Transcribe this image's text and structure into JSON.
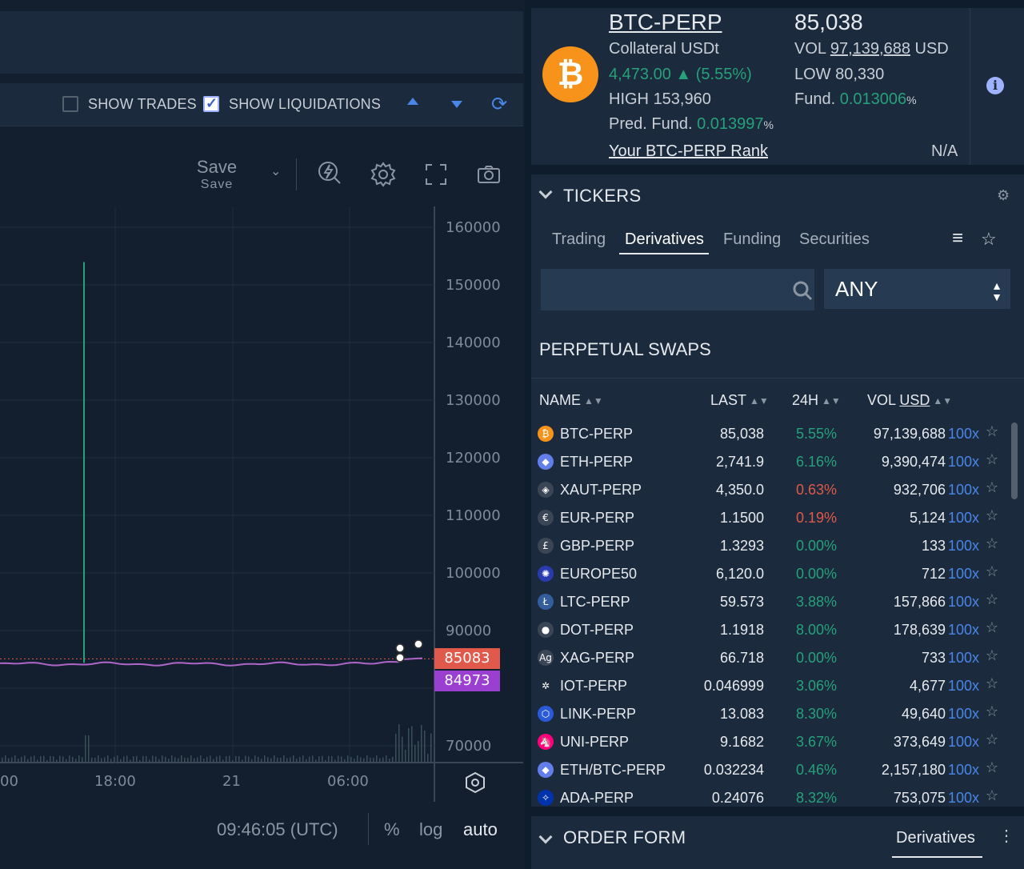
{
  "chart_toolbar": {
    "show_trades": "SHOW TRADES",
    "show_liquidations": "SHOW LIQUIDATIONS",
    "show_trades_checked": false,
    "show_liquidations_checked": true,
    "save_label": "Save",
    "save_sublabel": "Save"
  },
  "chart": {
    "y_ticks": [
      "160000",
      "150000",
      "140000",
      "130000",
      "120000",
      "110000",
      "100000",
      "90000",
      "70000"
    ],
    "x_ticks": [
      "00",
      "18:00",
      "21",
      "06:00"
    ],
    "price_tag_1": "85083",
    "price_tag_2": "84973",
    "tag1_color": "#e0594a",
    "tag2_color": "#9b3fd1"
  },
  "chart_data": {
    "type": "line",
    "x": [
      "00",
      "18:00",
      "21",
      "06:00"
    ],
    "ylim": [
      70000,
      160000
    ],
    "series": [
      {
        "values": [
          84200,
          84600,
          84800,
          84973
        ]
      }
    ]
  },
  "chart_footer": {
    "time": "09:46:05 (UTC)",
    "percent": "%",
    "log": "log",
    "auto": "auto"
  },
  "market": {
    "symbol": "BTC-PERP",
    "price": "85,038",
    "collateral": "Collateral USDt",
    "change": "4,473.00 ▲ (5.55%)",
    "high_label": "HIGH",
    "high": "153,960",
    "pred_label": "Pred. Fund.",
    "pred_value": "0.013997",
    "pct": "%",
    "vol_label": "VOL",
    "vol": "97,139,688",
    "vol_unit": "USD",
    "low_label": "LOW",
    "low": "80,330",
    "fund_label": "Fund.",
    "fund_value": "0.013006",
    "rank_label": "Your BTC-PERP Rank",
    "rank_value": "N/A"
  },
  "tickers": {
    "title": "TICKERS",
    "tabs": [
      "Trading",
      "Derivatives",
      "Funding",
      "Securities"
    ],
    "active_tab": "Derivatives",
    "search_placeholder": "",
    "filter": "ANY",
    "section": "PERPETUAL SWAPS",
    "headers": {
      "name": "NAME",
      "last": "LAST",
      "h24": "24H",
      "vol": "VOL",
      "vol_unit": "USD"
    },
    "rows": [
      {
        "name": "BTC-PERP",
        "last": "85,038",
        "chg": "5.55%",
        "dir": "up",
        "vol": "97,139,688",
        "lev": "100x",
        "icon": "₿",
        "color": "#f7931a"
      },
      {
        "name": "ETH-PERP",
        "last": "2,741.9",
        "chg": "6.16%",
        "dir": "up",
        "vol": "9,390,474",
        "lev": "100x",
        "icon": "◆",
        "color": "#627eea"
      },
      {
        "name": "XAUT-PERP",
        "last": "4,350.0",
        "chg": "0.63%",
        "dir": "down",
        "vol": "932,706",
        "lev": "100x",
        "icon": "◈",
        "color": "#3a4556"
      },
      {
        "name": "EUR-PERP",
        "last": "1.1500",
        "chg": "0.19%",
        "dir": "down",
        "vol": "5,124",
        "lev": "100x",
        "icon": "€",
        "color": "#3a4556"
      },
      {
        "name": "GBP-PERP",
        "last": "1.3293",
        "chg": "0.00%",
        "dir": "up",
        "vol": "133",
        "lev": "100x",
        "icon": "£",
        "color": "#3a4556"
      },
      {
        "name": "EUROPE50",
        "last": "6,120.0",
        "chg": "0.00%",
        "dir": "up",
        "vol": "712",
        "lev": "100x",
        "icon": "✺",
        "color": "#2a3bb0"
      },
      {
        "name": "LTC-PERP",
        "last": "59.573",
        "chg": "3.88%",
        "dir": "up",
        "vol": "157,866",
        "lev": "100x",
        "icon": "Ł",
        "color": "#345d9d"
      },
      {
        "name": "DOT-PERP",
        "last": "1.1918",
        "chg": "8.00%",
        "dir": "up",
        "vol": "178,639",
        "lev": "100x",
        "icon": "●",
        "color": "#3a4556"
      },
      {
        "name": "XAG-PERP",
        "last": "66.718",
        "chg": "0.00%",
        "dir": "up",
        "vol": "733",
        "lev": "100x",
        "icon": "Ag",
        "color": "#3a4556"
      },
      {
        "name": "IOT-PERP",
        "last": "0.046999",
        "chg": "3.06%",
        "dir": "up",
        "vol": "4,677",
        "lev": "100x",
        "icon": "✲",
        "color": "#1b2a3c"
      },
      {
        "name": "LINK-PERP",
        "last": "13.083",
        "chg": "8.30%",
        "dir": "up",
        "vol": "49,640",
        "lev": "100x",
        "icon": "⬡",
        "color": "#2a5ada"
      },
      {
        "name": "UNI-PERP",
        "last": "9.1682",
        "chg": "3.67%",
        "dir": "up",
        "vol": "373,649",
        "lev": "100x",
        "icon": "🦄",
        "color": "#ff007a"
      },
      {
        "name": "ETH/BTC-PERP",
        "last": "0.032234",
        "chg": "0.46%",
        "dir": "up",
        "vol": "2,157,180",
        "lev": "100x",
        "icon": "◆",
        "color": "#627eea"
      },
      {
        "name": "ADA-PERP",
        "last": "0.24076",
        "chg": "8.32%",
        "dir": "up",
        "vol": "753,075",
        "lev": "100x",
        "icon": "✧",
        "color": "#0033ad"
      }
    ]
  },
  "order_form": {
    "title": "ORDER FORM",
    "tab": "Derivatives"
  }
}
